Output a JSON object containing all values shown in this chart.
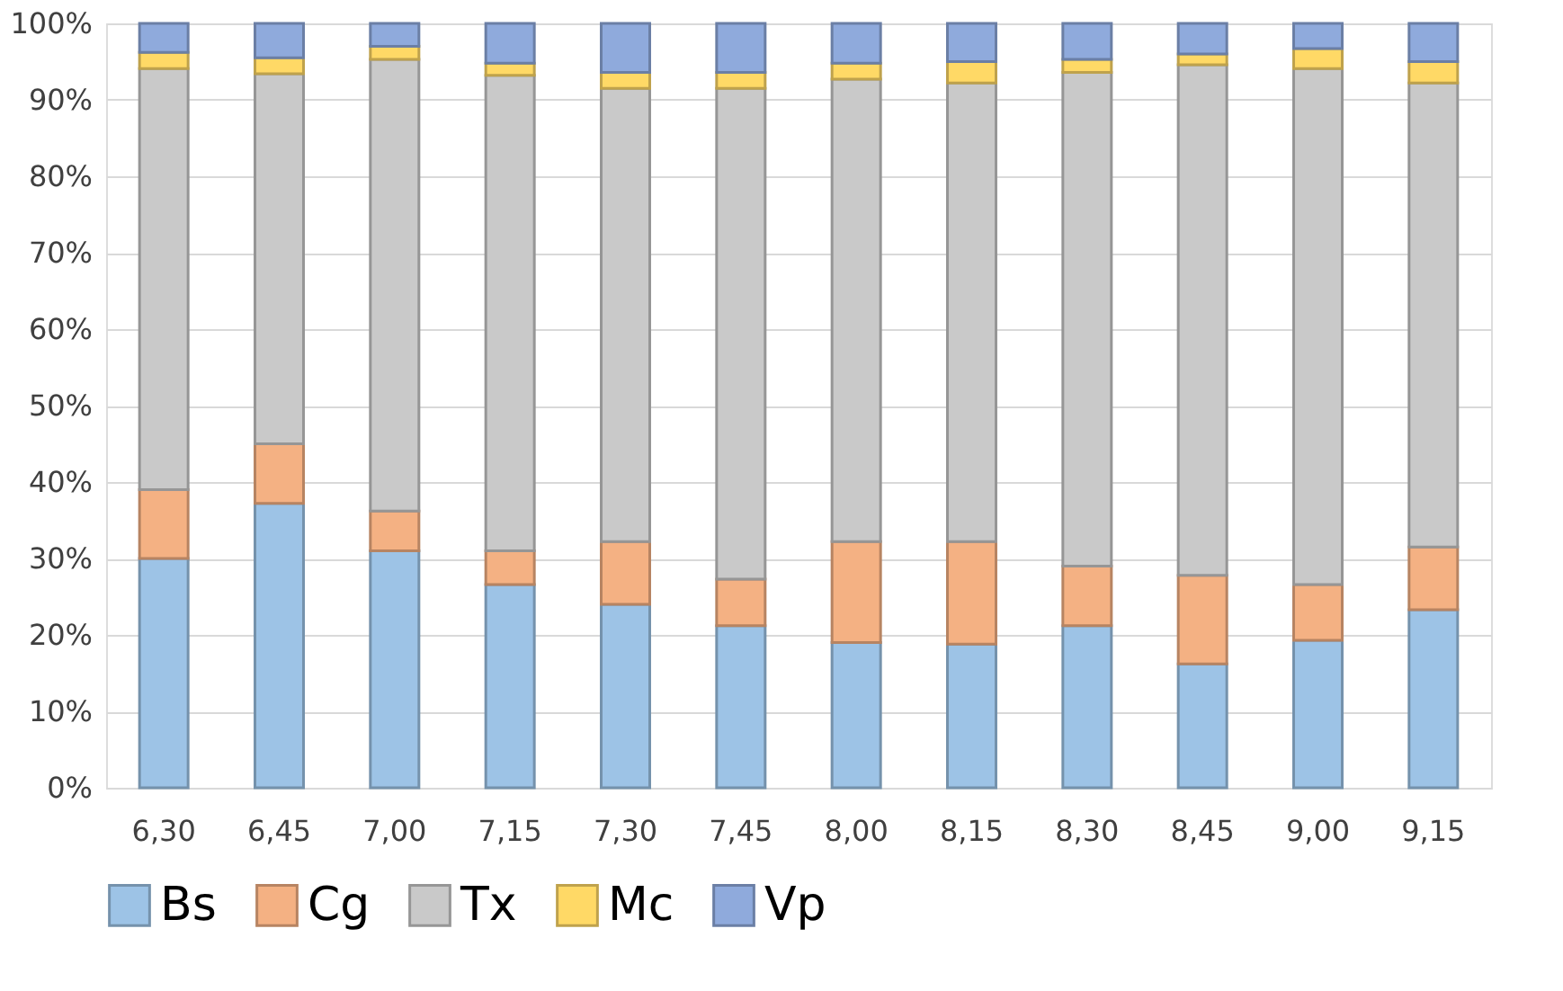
{
  "chart_data": {
    "type": "bar",
    "stacked": true,
    "categories": [
      "6,30",
      "6,45",
      "7,00",
      "7,15",
      "7,30",
      "7,45",
      "8,00",
      "8,15",
      "8,30",
      "8,45",
      "9,00",
      "9,15"
    ],
    "series": [
      {
        "name": "Bs",
        "color": "#9dc3e6",
        "values": [
          30,
          37.2,
          31,
          26.6,
          24,
          21.2,
          19,
          18.8,
          21.2,
          16.2,
          19.3,
          23.3
        ]
      },
      {
        "name": "Cg",
        "color": "#f4b183",
        "values": [
          9,
          7.8,
          5.2,
          4.4,
          8.2,
          6.1,
          13.2,
          13.4,
          7.8,
          11.6,
          7.3,
          8.2
        ]
      },
      {
        "name": "Tx",
        "color": "#c9c9c9",
        "values": [
          55.1,
          48.4,
          59.1,
          62.2,
          59.3,
          64.2,
          60.5,
          60,
          64.6,
          66.8,
          67.5,
          60.7
        ]
      },
      {
        "name": "Mc",
        "color": "#ffd966",
        "values": [
          2.1,
          2.1,
          1.7,
          1.6,
          2.1,
          2.1,
          2.1,
          2.8,
          1.7,
          1.4,
          2.6,
          2.8
        ]
      },
      {
        "name": "Vp",
        "color": "#8faadc",
        "values": [
          3.8,
          4.5,
          3,
          5.2,
          6.4,
          6.4,
          5.2,
          5,
          4.7,
          4,
          3.3,
          5
        ]
      }
    ],
    "ylim": [
      0,
      100
    ],
    "yticks": [
      {
        "value": 0,
        "label": "0%"
      },
      {
        "value": 10,
        "label": "10%"
      },
      {
        "value": 20,
        "label": "20%"
      },
      {
        "value": 30,
        "label": "30%"
      },
      {
        "value": 40,
        "label": "40%"
      },
      {
        "value": 50,
        "label": "50%"
      },
      {
        "value": 60,
        "label": "60%"
      },
      {
        "value": 70,
        "label": "70%"
      },
      {
        "value": 80,
        "label": "80%"
      },
      {
        "value": 90,
        "label": "90%"
      },
      {
        "value": 100,
        "label": "100%"
      }
    ],
    "grid": "y",
    "legend": "bottom"
  }
}
